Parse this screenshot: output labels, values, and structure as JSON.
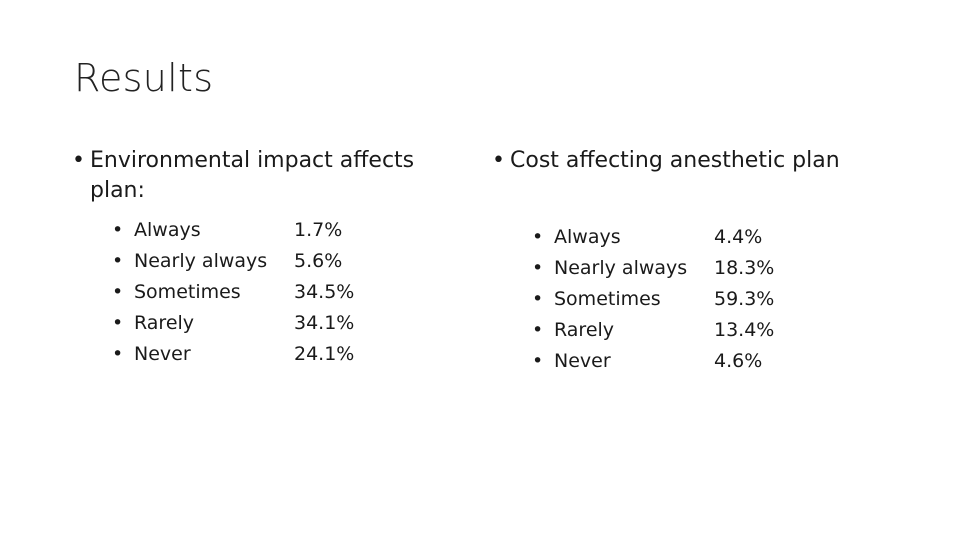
{
  "title": "Results",
  "left": {
    "heading": "Environmental impact affects plan:",
    "items": [
      {
        "label": "Always",
        "value": "1.7%"
      },
      {
        "label": "Nearly always",
        "value": "5.6%"
      },
      {
        "label": "Sometimes",
        "value": "34.5%"
      },
      {
        "label": "Rarely",
        "value": "34.1%"
      },
      {
        "label": "Never",
        "value": "24.1%"
      }
    ]
  },
  "right": {
    "heading": "Cost affecting anesthetic plan",
    "items": [
      {
        "label": "Always",
        "value": "4.4%"
      },
      {
        "label": "Nearly always",
        "value": "18.3%"
      },
      {
        "label": "Sometimes",
        "value": "59.3%"
      },
      {
        "label": "Rarely",
        "value": "13.4%"
      },
      {
        "label": "Never",
        "value": "4.6%"
      }
    ]
  },
  "bullet": "•"
}
